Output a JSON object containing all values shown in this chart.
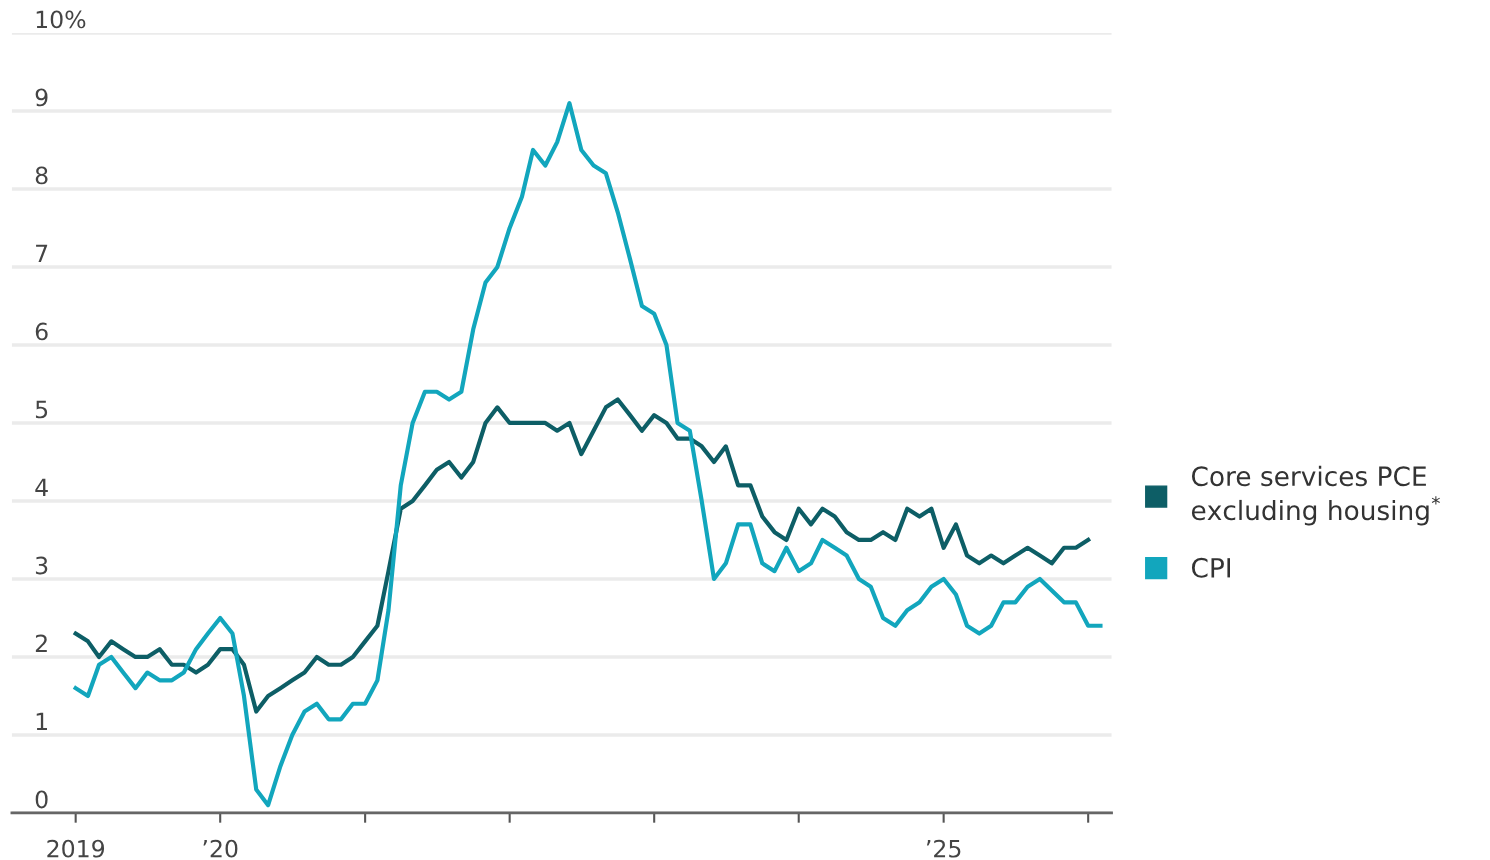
{
  "chart_data": {
    "type": "line",
    "series": [
      {
        "name": "Core services PCE\nexcluding housing$^{*}$",
        "color": "#0d5e66",
        "x": [
          "2019-01",
          "2019-02",
          "2019-03",
          "2019-04",
          "2019-05",
          "2019-06",
          "2019-07",
          "2019-08",
          "2019-09",
          "2019-10",
          "2019-11",
          "2019-12",
          "2020-01",
          "2020-02",
          "2020-03",
          "2020-04",
          "2020-05",
          "2020-06",
          "2020-07",
          "2020-08",
          "2020-09",
          "2020-10",
          "2020-11",
          "2020-12",
          "2021-01",
          "2021-02",
          "2021-03",
          "2021-04",
          "2021-05",
          "2021-06",
          "2021-07",
          "2021-08",
          "2021-09",
          "2021-10",
          "2021-11",
          "2021-12",
          "2022-01",
          "2022-02",
          "2022-03",
          "2022-04",
          "2022-05",
          "2022-06",
          "2022-07",
          "2022-08",
          "2022-09",
          "2022-10",
          "2022-11",
          "2022-12",
          "2023-01",
          "2023-02",
          "2023-03",
          "2023-04",
          "2023-05",
          "2023-06",
          "2023-07",
          "2023-08",
          "2023-09",
          "2023-10",
          "2023-11",
          "2023-12",
          "2024-01",
          "2024-02",
          "2024-03",
          "2024-04",
          "2024-05",
          "2024-06",
          "2024-07",
          "2024-08",
          "2024-09",
          "2024-10",
          "2024-11",
          "2024-12",
          "2025-01",
          "2025-02",
          "2025-03",
          "2025-04",
          "2025-05",
          "2025-06",
          "2025-07",
          "2025-08",
          "2025-09",
          "2025-10",
          "2025-11",
          "2025-12",
          "2026-01"
        ],
        "values": [
          2.3,
          2.2,
          2.0,
          2.2,
          2.1,
          2.0,
          2.0,
          2.1,
          1.9,
          1.9,
          1.8,
          1.9,
          2.1,
          2.1,
          1.9,
          1.3,
          1.5,
          1.6,
          1.7,
          1.8,
          2.0,
          1.9,
          1.9,
          2.0,
          2.2,
          2.4,
          3.1,
          3.9,
          4.0,
          4.2,
          4.4,
          4.5,
          4.3,
          4.5,
          5.0,
          5.2,
          5.0,
          5.0,
          5.0,
          5.0,
          4.9,
          5.0,
          4.6,
          4.9,
          5.2,
          5.3,
          5.1,
          4.9,
          5.1,
          5.0,
          4.8,
          4.8,
          4.7,
          4.5,
          4.7,
          4.2,
          4.2,
          3.8,
          3.6,
          3.5,
          3.9,
          3.7,
          3.9,
          3.8,
          3.6,
          3.5,
          3.5,
          3.6,
          3.5,
          3.9,
          3.8,
          3.9,
          3.4,
          3.7,
          3.3,
          3.2,
          3.3,
          3.2,
          3.3,
          3.4,
          3.3,
          3.2,
          3.4,
          3.4,
          3.5
        ]
      },
      {
        "name": "CPI",
        "color": "#12a6bd",
        "x": [
          "2019-01",
          "2019-02",
          "2019-03",
          "2019-04",
          "2019-05",
          "2019-06",
          "2019-07",
          "2019-08",
          "2019-09",
          "2019-10",
          "2019-11",
          "2019-12",
          "2020-01",
          "2020-02",
          "2020-03",
          "2020-04",
          "2020-05",
          "2020-06",
          "2020-07",
          "2020-08",
          "2020-09",
          "2020-10",
          "2020-11",
          "2020-12",
          "2021-01",
          "2021-02",
          "2021-03",
          "2021-04",
          "2021-05",
          "2021-06",
          "2021-07",
          "2021-08",
          "2021-09",
          "2021-10",
          "2021-11",
          "2021-12",
          "2022-01",
          "2022-02",
          "2022-03",
          "2022-04",
          "2022-05",
          "2022-06",
          "2022-07",
          "2022-08",
          "2022-09",
          "2022-10",
          "2022-11",
          "2022-12",
          "2023-01",
          "2023-02",
          "2023-03",
          "2023-04",
          "2023-05",
          "2023-06",
          "2023-07",
          "2023-08",
          "2023-09",
          "2023-10",
          "2023-11",
          "2023-12",
          "2024-01",
          "2024-02",
          "2024-03",
          "2024-04",
          "2024-05",
          "2024-06",
          "2024-07",
          "2024-08",
          "2024-09",
          "2024-10",
          "2024-11",
          "2024-12",
          "2025-01",
          "2025-02",
          "2025-03",
          "2025-04",
          "2025-05",
          "2025-06",
          "2025-07",
          "2025-08",
          "2025-09",
          "2025-11",
          "2025-12",
          "2026-01",
          "2026-02"
        ],
        "values": [
          1.6,
          1.5,
          1.9,
          2.0,
          1.8,
          1.6,
          1.8,
          1.7,
          1.7,
          1.8,
          2.1,
          2.3,
          2.5,
          2.3,
          1.5,
          0.3,
          0.1,
          0.6,
          1.0,
          1.3,
          1.4,
          1.2,
          1.2,
          1.4,
          1.4,
          1.7,
          2.6,
          4.2,
          5.0,
          5.4,
          5.4,
          5.3,
          5.4,
          6.2,
          6.8,
          7.0,
          7.5,
          7.9,
          8.5,
          8.3,
          8.6,
          9.1,
          8.5,
          8.3,
          8.2,
          7.7,
          7.1,
          6.5,
          6.4,
          6.0,
          5.0,
          4.9,
          4.0,
          3.0,
          3.2,
          3.7,
          3.7,
          3.2,
          3.1,
          3.4,
          3.1,
          3.2,
          3.5,
          3.4,
          3.3,
          3.0,
          2.9,
          2.5,
          2.4,
          2.6,
          2.7,
          2.9,
          3.0,
          2.8,
          2.4,
          2.3,
          2.4,
          2.7,
          2.7,
          2.9,
          3.0,
          2.7,
          2.7,
          2.4,
          2.4
        ]
      }
    ],
    "xlim": [
      "2018-07-24",
      "2026-03-01"
    ],
    "xticks": [
      {
        "value": "2019-01",
        "label": "2019"
      },
      {
        "value": "2020-01",
        "label": "’20"
      },
      {
        "value": "2021-01",
        "label": null
      },
      {
        "value": "2022-01",
        "label": null
      },
      {
        "value": "2023-01",
        "label": null
      },
      {
        "value": "2024-01",
        "label": null
      },
      {
        "value": "2025-01",
        "label": "’25"
      },
      {
        "value": "2026-01",
        "label": null
      }
    ],
    "ylim": [
      0,
      10
    ],
    "yticks": [
      0,
      1,
      2,
      3,
      4,
      5,
      6,
      7,
      8,
      9,
      {
        "value": 10,
        "label": "10%"
      }
    ],
    "grid": "y",
    "legend": "right",
    "line_style": "solid",
    "marker": "none"
  }
}
